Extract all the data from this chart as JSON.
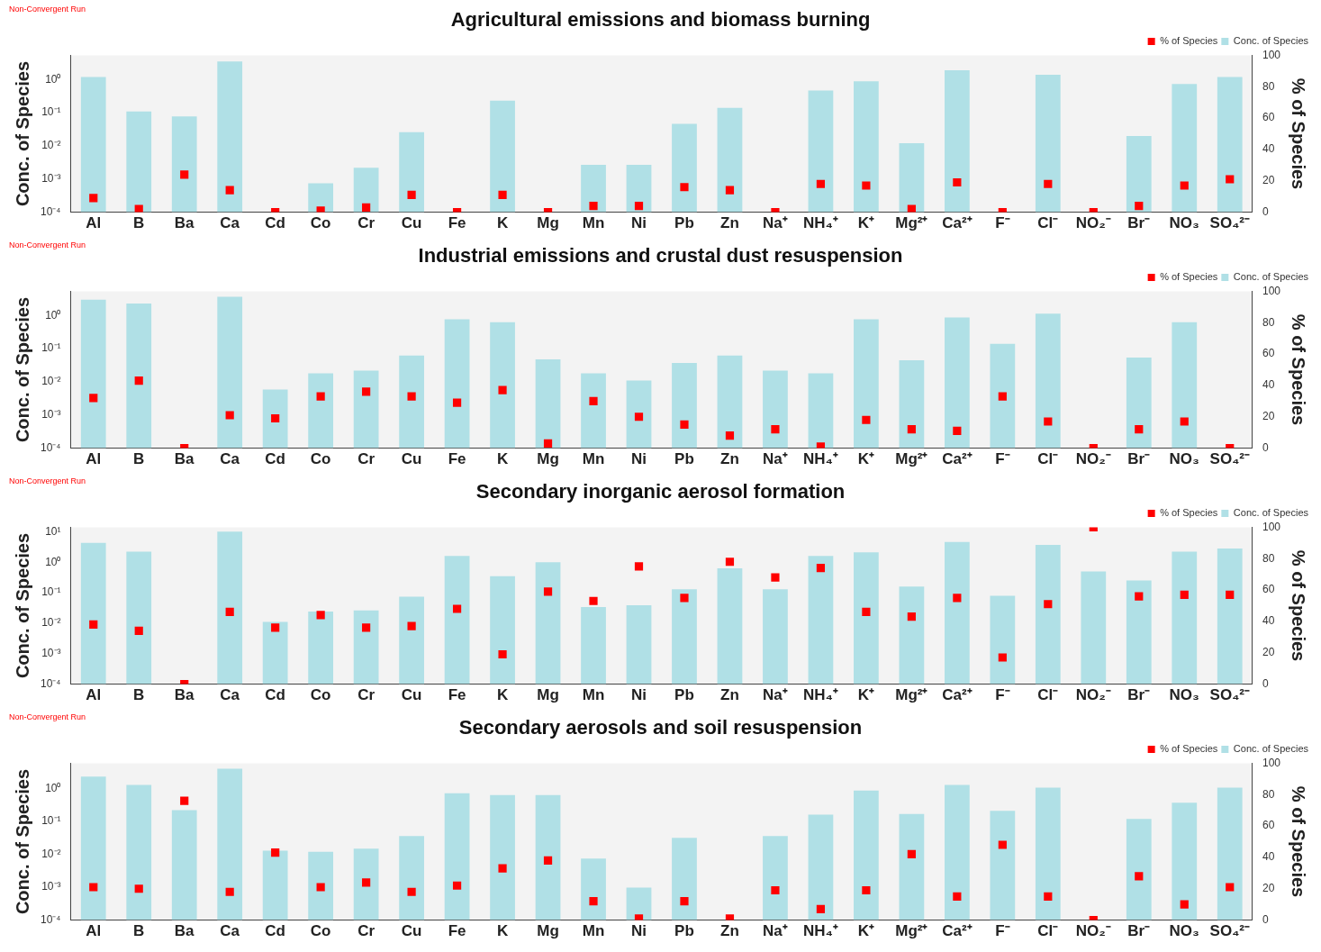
{
  "chart_data": [
    {
      "type": "bar",
      "title": "Agricultural emissions and biomass burning",
      "ylabel": "Conc. of Species",
      "y2label": "% of Species",
      "annotations": [
        "Non-Convergent Run"
      ],
      "legend": "top right",
      "log": "y",
      "ylim": [
        0.0001,
        5.4
      ],
      "yticks": [
        {
          "value": 0.0001,
          "label": "10⁻⁴"
        },
        {
          "value": 0.001,
          "label": "10⁻³"
        },
        {
          "value": 0.01,
          "label": "10⁻²"
        },
        {
          "value": 0.1,
          "label": "10⁻¹"
        },
        {
          "value": 1,
          "label": "10⁰"
        }
      ],
      "y2lim": [
        0,
        100
      ],
      "y2ticks": [
        0,
        20,
        40,
        60,
        80,
        100
      ],
      "categories": [
        "Al",
        "B",
        "Ba",
        "Ca",
        "Cd",
        "Co",
        "Cr",
        "Cu",
        "Fe",
        "K",
        "Mg",
        "Mn",
        "Ni",
        "Pb",
        "Zn",
        "Na⁺",
        "NH₄⁺",
        "K⁺",
        "Mg²⁺",
        "Ca²⁺",
        "F⁻",
        "Cl⁻",
        "NO₂⁻",
        "Br⁻",
        "NO₃",
        "SO₄²⁻"
      ],
      "series": [
        {
          "name": "% of Species",
          "type": "scatter",
          "axis": "y2",
          "marker": "square",
          "color": "#ff0000",
          "x": [
            "Al",
            "B",
            "Ba",
            "Ca",
            "Cd",
            "Co",
            "Cr",
            "Cu",
            "Fe",
            "K",
            "Mg",
            "Mn",
            "Ni",
            "Pb",
            "Zn",
            "Na⁺",
            "NH₄⁺",
            "K⁺",
            "Mg²⁺",
            "Ca²⁺",
            "F⁻",
            "Cl⁻",
            "NO₂⁻",
            "Br⁻",
            "NO₃",
            "SO₄²⁻"
          ],
          "values": [
            9,
            2,
            24,
            14,
            0,
            1,
            3,
            11,
            0,
            11,
            0,
            4,
            4,
            16,
            14,
            0,
            18,
            17,
            2,
            19,
            0,
            18,
            0,
            4,
            17,
            21
          ]
        },
        {
          "name": "Conc. of Species",
          "color": "#b0e0e6",
          "values": [
            1.2,
            0.11,
            0.077,
            3.5,
            null,
            0.00074,
            0.0022,
            0.026,
            null,
            0.23,
            null,
            0.0027,
            0.0027,
            0.046,
            0.14,
            null,
            0.47,
            0.89,
            0.012,
            1.9,
            null,
            1.4,
            null,
            0.02,
            0.74,
            1.2
          ]
        }
      ]
    },
    {
      "type": "bar",
      "title": "Industrial emissions and crustal dust resuspension",
      "ylabel": "Conc. of Species",
      "y2label": "% of Species",
      "annotations": [
        "Non-Convergent Run"
      ],
      "legend": "top right",
      "log": "y",
      "ylim": [
        0.0001,
        5.4
      ],
      "yticks": [
        {
          "value": 0.0001,
          "label": "10⁻⁴"
        },
        {
          "value": 0.001,
          "label": "10⁻³"
        },
        {
          "value": 0.01,
          "label": "10⁻²"
        },
        {
          "value": 0.1,
          "label": "10⁻¹"
        },
        {
          "value": 1,
          "label": "10⁰"
        }
      ],
      "y2lim": [
        0,
        100
      ],
      "y2ticks": [
        0,
        20,
        40,
        60,
        80,
        100
      ],
      "categories": [
        "Al",
        "B",
        "Ba",
        "Ca",
        "Cd",
        "Co",
        "Cr",
        "Cu",
        "Fe",
        "K",
        "Mg",
        "Mn",
        "Ni",
        "Pb",
        "Zn",
        "Na⁺",
        "NH₄⁺",
        "K⁺",
        "Mg²⁺",
        "Ca²⁺",
        "F⁻",
        "Cl⁻",
        "NO₂⁻",
        "Br⁻",
        "NO₃",
        "SO₄²⁻"
      ],
      "series": [
        {
          "name": "% of Species",
          "type": "scatter",
          "axis": "y2",
          "marker": "square",
          "color": "#ff0000",
          "x": [
            "Al",
            "B",
            "Ba",
            "Ca",
            "Cd",
            "Co",
            "Cr",
            "Cu",
            "Fe",
            "K",
            "Mg",
            "Mn",
            "Ni",
            "Pb",
            "Zn",
            "Na⁺",
            "NH₄⁺",
            "K⁺",
            "Mg²⁺",
            "Ca²⁺",
            "F⁻",
            "Cl⁻",
            "NO₂⁻",
            "Br⁻",
            "NO₃",
            "SO₄²⁻"
          ],
          "values": [
            32,
            43,
            0,
            21,
            19,
            33,
            36,
            33,
            29,
            37,
            3,
            30,
            20,
            15,
            8,
            12,
            1,
            18,
            12,
            11,
            33,
            17,
            0,
            12,
            17,
            0
          ]
        },
        {
          "name": "Conc. of Species",
          "color": "#b0e0e6",
          "values": [
            3.0,
            2.3,
            null,
            3.7,
            0.0059,
            0.018,
            0.022,
            0.062,
            0.77,
            0.63,
            0.048,
            0.018,
            0.011,
            0.037,
            0.062,
            0.022,
            0.018,
            0.77,
            0.045,
            0.87,
            0.14,
            1.15,
            null,
            0.054,
            0.63,
            null
          ]
        }
      ]
    },
    {
      "type": "bar",
      "title": "Secondary inorganic aerosol formation",
      "ylabel": "Conc. of Species",
      "y2label": "% of Species",
      "annotations": [
        "Non-Convergent Run"
      ],
      "legend": "top right",
      "log": "y",
      "ylim": [
        0.0001,
        14
      ],
      "yticks": [
        {
          "value": 0.0001,
          "label": "10⁻⁴"
        },
        {
          "value": 0.001,
          "label": "10⁻³"
        },
        {
          "value": 0.01,
          "label": "10⁻²"
        },
        {
          "value": 0.1,
          "label": "10⁻¹"
        },
        {
          "value": 1,
          "label": "10⁰"
        },
        {
          "value": 10,
          "label": "10¹"
        }
      ],
      "y2lim": [
        0,
        100
      ],
      "y2ticks": [
        0,
        20,
        40,
        60,
        80,
        100
      ],
      "categories": [
        "Al",
        "B",
        "Ba",
        "Ca",
        "Cd",
        "Co",
        "Cr",
        "Cu",
        "Fe",
        "K",
        "Mg",
        "Mn",
        "Ni",
        "Pb",
        "Zn",
        "Na⁺",
        "NH₄⁺",
        "K⁺",
        "Mg²⁺",
        "Ca²⁺",
        "F⁻",
        "Cl⁻",
        "NO₂⁻",
        "Br⁻",
        "NO₃",
        "SO₄²⁻"
      ],
      "series": [
        {
          "name": "% of Species",
          "type": "scatter",
          "axis": "y2",
          "marker": "square",
          "color": "#ff0000",
          "x": [
            "Al",
            "B",
            "Ba",
            "Ca",
            "Cd",
            "Co",
            "Cr",
            "Cu",
            "Fe",
            "K",
            "Mg",
            "Mn",
            "Ni",
            "Pb",
            "Zn",
            "Na⁺",
            "NH₄⁺",
            "K⁺",
            "Mg²⁺",
            "Ca²⁺",
            "F⁻",
            "Cl⁻",
            "NO₂⁻",
            "Br⁻",
            "NO₃",
            "SO₄²⁻"
          ],
          "values": [
            38,
            34,
            0,
            46,
            36,
            44,
            36,
            37,
            48,
            19,
            59,
            53,
            75,
            55,
            78,
            68,
            74,
            46,
            43,
            55,
            17,
            51,
            100,
            56,
            57,
            57
          ]
        },
        {
          "name": "Conc. of Species",
          "color": "#b0e0e6",
          "values": [
            4.3,
            2.2,
            null,
            10,
            0.011,
            0.024,
            0.026,
            0.074,
            1.6,
            0.35,
            1.0,
            0.034,
            0.039,
            0.13,
            0.63,
            0.13,
            1.6,
            2.1,
            0.16,
            4.6,
            0.079,
            3.7,
            0.5,
            0.25,
            2.2,
            2.8
          ]
        }
      ]
    },
    {
      "type": "bar",
      "title": "Secondary aerosols and soil resuspension",
      "ylabel": "Conc. of Species",
      "y2label": "% of Species",
      "annotations": [
        "Non-Convergent Run"
      ],
      "legend": "top right",
      "log": "y",
      "ylim": [
        0.0001,
        5.9
      ],
      "yticks": [
        {
          "value": 0.0001,
          "label": "10⁻⁴"
        },
        {
          "value": 0.001,
          "label": "10⁻³"
        },
        {
          "value": 0.01,
          "label": "10⁻²"
        },
        {
          "value": 0.1,
          "label": "10⁻¹"
        },
        {
          "value": 1,
          "label": "10⁰"
        }
      ],
      "y2lim": [
        0,
        100
      ],
      "y2ticks": [
        0,
        20,
        40,
        60,
        80,
        100
      ],
      "categories": [
        "Al",
        "B",
        "Ba",
        "Ca",
        "Cd",
        "Co",
        "Cr",
        "Cu",
        "Fe",
        "K",
        "Mg",
        "Mn",
        "Ni",
        "Pb",
        "Zn",
        "Na⁺",
        "NH₄⁺",
        "K⁺",
        "Mg²⁺",
        "Ca²⁺",
        "F⁻",
        "Cl⁻",
        "NO₂⁻",
        "Br⁻",
        "NO₃",
        "SO₄²⁻"
      ],
      "series": [
        {
          "name": "% of Species",
          "type": "scatter",
          "axis": "y2",
          "marker": "square",
          "color": "#ff0000",
          "x": [
            "Al",
            "B",
            "Ba",
            "Ca",
            "Cd",
            "Co",
            "Cr",
            "Cu",
            "Fe",
            "K",
            "Mg",
            "Mn",
            "Ni",
            "Pb",
            "Zn",
            "Na⁺",
            "NH₄⁺",
            "K⁺",
            "Mg²⁺",
            "Ca²⁺",
            "F⁻",
            "Cl⁻",
            "NO₂⁻",
            "Br⁻",
            "NO₃",
            "SO₄²⁻"
          ],
          "values": [
            21,
            20,
            76,
            18,
            43,
            21,
            24,
            18,
            22,
            33,
            38,
            12,
            1,
            12,
            1,
            19,
            7,
            19,
            42,
            15,
            48,
            15,
            0,
            28,
            10,
            21
          ]
        },
        {
          "name": "Conc. of Species",
          "color": "#b0e0e6",
          "values": [
            2.3,
            1.3,
            0.22,
            4.0,
            0.013,
            0.012,
            0.015,
            0.036,
            0.72,
            0.63,
            0.63,
            0.0074,
            0.00098,
            0.032,
            null,
            0.036,
            0.16,
            0.87,
            0.17,
            1.3,
            0.21,
            1.07,
            null,
            0.12,
            0.37,
            1.07
          ]
        }
      ]
    }
  ]
}
